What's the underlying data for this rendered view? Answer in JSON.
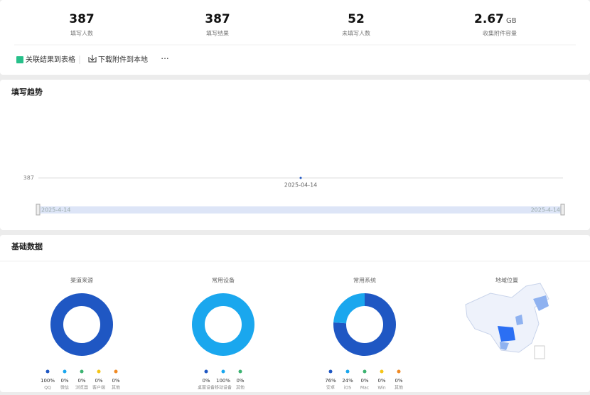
{
  "stats": [
    {
      "value": "387",
      "label": "填写人数"
    },
    {
      "value": "387",
      "label": "填写结果"
    },
    {
      "value": "52",
      "label": "未填写人数"
    },
    {
      "value": "2.67",
      "unit": "GB",
      "label": "收集附件容量"
    }
  ],
  "actions": [
    "关联结果到表格",
    "下载附件到本地",
    "···"
  ],
  "trend": {
    "title": "填写趋势",
    "x": [
      "2025-04-14"
    ],
    "values": [
      387
    ],
    "yticks": [
      387
    ],
    "range": [
      "2025-4-14",
      "2025-4-14"
    ]
  },
  "basic": {
    "title": "基础数据",
    "charts": [
      {
        "title": "渠道来源",
        "items": [
          {
            "name": "QQ",
            "value": 100,
            "value_label": "100%",
            "color": "#1f57c3"
          },
          {
            "name": "微信",
            "value": 0,
            "value_label": "0%",
            "color": "#1aa7ee"
          },
          {
            "name": "浏览器",
            "value": 0,
            "value_label": "0%",
            "color": "#3cb371"
          },
          {
            "name": "客户端",
            "value": 0,
            "value_label": "0%",
            "color": "#f5c518"
          },
          {
            "name": "其他",
            "value": 0,
            "value_label": "0%",
            "color": "#f08a24"
          }
        ]
      },
      {
        "title": "常用设备",
        "items": [
          {
            "name": "桌面设备",
            "value": 0,
            "value_label": "0%",
            "color": "#1f57c3"
          },
          {
            "name": "移动设备",
            "value": 100,
            "value_label": "100%",
            "color": "#1aa7ee"
          },
          {
            "name": "其他",
            "value": 0,
            "value_label": "0%",
            "color": "#3cb371"
          }
        ]
      },
      {
        "title": "常用系统",
        "items": [
          {
            "name": "安卓",
            "value": 76,
            "value_label": "76%",
            "color": "#1f57c3"
          },
          {
            "name": "iOS",
            "value": 24,
            "value_label": "24%",
            "color": "#1aa7ee"
          },
          {
            "name": "Mac",
            "value": 0,
            "value_label": "0%",
            "color": "#3cb371"
          },
          {
            "name": "Win",
            "value": 0,
            "value_label": "0%",
            "color": "#f5c518"
          },
          {
            "name": "其他",
            "value": 0,
            "value_label": "0%",
            "color": "#f08a24"
          }
        ]
      }
    ],
    "map_title": "地域位置"
  }
}
